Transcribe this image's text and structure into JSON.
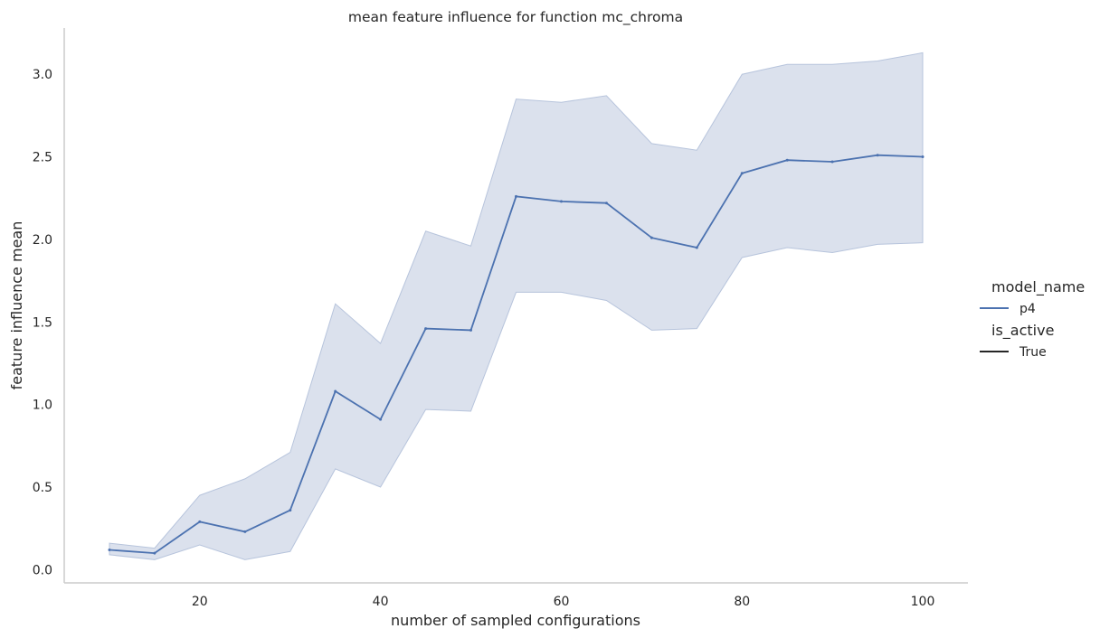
{
  "chart_data": {
    "type": "line",
    "title": "mean feature influence for function mc_chroma",
    "xlabel": "number of sampled configurations",
    "ylabel": "feature influence mean",
    "xlim": [
      5,
      105
    ],
    "ylim": [
      -0.08,
      3.28
    ],
    "xticks": [
      20,
      40,
      60,
      80,
      100
    ],
    "yticks": [
      0.0,
      0.5,
      1.0,
      1.5,
      2.0,
      2.5,
      3.0
    ],
    "xtick_labels": [
      "20",
      "40",
      "60",
      "80",
      "100"
    ],
    "ytick_labels": [
      "0.0",
      "0.5",
      "1.0",
      "1.5",
      "2.0",
      "2.5",
      "3.0"
    ],
    "grid": false,
    "legend": {
      "placement": "right",
      "hue_title": "model_name",
      "style_title": "is_active",
      "entries": [
        {
          "label": "p4",
          "color": "#4c72b0"
        },
        {
          "label": "True",
          "color": "#262626"
        }
      ]
    },
    "x": [
      10,
      15,
      20,
      25,
      30,
      35,
      40,
      45,
      50,
      55,
      60,
      65,
      70,
      75,
      80,
      85,
      90,
      95,
      100
    ],
    "series": [
      {
        "name": "p4",
        "color": "#4c72b0",
        "band_color": "#b7c4dc",
        "values": [
          0.12,
          0.1,
          0.29,
          0.23,
          0.36,
          1.08,
          0.91,
          1.46,
          1.45,
          2.26,
          2.23,
          2.22,
          2.01,
          1.95,
          2.4,
          2.48,
          2.47,
          2.51,
          2.5
        ],
        "ci_upper": [
          0.16,
          0.13,
          0.45,
          0.55,
          0.71,
          1.61,
          1.37,
          2.05,
          1.96,
          2.85,
          2.83,
          2.87,
          2.58,
          2.54,
          3.0,
          3.06,
          3.06,
          3.08,
          3.13
        ],
        "ci_lower": [
          0.09,
          0.06,
          0.15,
          0.06,
          0.11,
          0.61,
          0.5,
          0.97,
          0.96,
          1.68,
          1.68,
          1.63,
          1.45,
          1.46,
          1.89,
          1.95,
          1.92,
          1.97,
          1.98
        ]
      }
    ]
  }
}
